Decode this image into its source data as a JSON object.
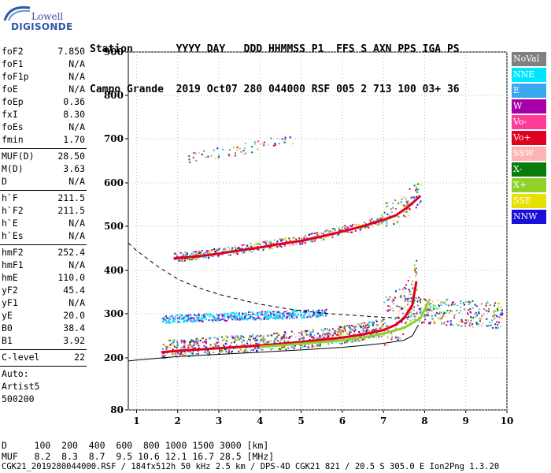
{
  "logo": {
    "top": "Lowell",
    "bottom": "DIGISONDE"
  },
  "header": {
    "line1": "Station       YYYY DAY   DDD HHMMSS P1  FFS S AXN PPS IGA PS",
    "line2": "Campo Grande  2019 Oct07 280 044000 RSF 005 2 713 100 03+ 36"
  },
  "params": {
    "group1": [
      {
        "label": "foF2",
        "value": "7.850"
      },
      {
        "label": "foF1",
        "value": "N/A"
      },
      {
        "label": "foF1p",
        "value": "N/A"
      },
      {
        "label": "foE",
        "value": "N/A"
      },
      {
        "label": "foEp",
        "value": "0.36"
      },
      {
        "label": "fxI",
        "value": "8.30"
      },
      {
        "label": "foEs",
        "value": "N/A"
      },
      {
        "label": "fmin",
        "value": "1.70"
      }
    ],
    "group2": [
      {
        "label": "MUF(D)",
        "value": "28.50"
      },
      {
        "label": "M(D)",
        "value": "3.63"
      },
      {
        "label": "D",
        "value": "N/A"
      }
    ],
    "group3": [
      {
        "label": "h`F",
        "value": "211.5"
      },
      {
        "label": "h`F2",
        "value": "211.5"
      },
      {
        "label": "h`E",
        "value": "N/A"
      },
      {
        "label": "h`Es",
        "value": "N/A"
      }
    ],
    "group4": [
      {
        "label": "hmF2",
        "value": "252.4"
      },
      {
        "label": "hmF1",
        "value": "N/A"
      },
      {
        "label": "hmE",
        "value": "110.0"
      },
      {
        "label": "yF2",
        "value": "45.4"
      },
      {
        "label": "yF1",
        "value": "N/A"
      },
      {
        "label": "yE",
        "value": "20.0"
      },
      {
        "label": "B0",
        "value": "38.4"
      },
      {
        "label": "B1",
        "value": "3.92"
      }
    ],
    "group5": [
      {
        "label": "C-level",
        "value": "22"
      }
    ],
    "auto_lines": [
      "Auto:",
      "Artist5",
      "500200"
    ]
  },
  "footer": {
    "line1": "D     100  200  400  600  800 1000 1500 3000 [km]",
    "line2": "MUF   8.2  8.3  8.7  9.5 10.6 12.1 16.7 28.5 [MHz]",
    "line3": "CGK21_2019280044000.RSF / 184fx512h 50 kHz 2.5 km / DPS-4D CGK21 821 / 20.5 S 305.0 E Ion2Png 1.3.20"
  },
  "legend": [
    {
      "label": "NoVal",
      "color": "#808080"
    },
    {
      "label": "NNE",
      "color": "#00e5ff"
    },
    {
      "label": "E",
      "color": "#39a8f2"
    },
    {
      "label": "W",
      "color": "#a800a8"
    },
    {
      "label": "Vo-",
      "color": "#ff3c9a"
    },
    {
      "label": "Vo+",
      "color": "#e0001f"
    },
    {
      "label": "SSW",
      "color": "#ffb4b4"
    },
    {
      "label": "X-",
      "color": "#0a7a0a"
    },
    {
      "label": "X+",
      "color": "#8fd12a"
    },
    {
      "label": "SSE",
      "color": "#e8e000"
    },
    {
      "label": "NNW",
      "color": "#1a10d8"
    }
  ],
  "chart_data": {
    "type": "scatter",
    "xlabel": "",
    "ylabel": "",
    "xlim": [
      0.8,
      10
    ],
    "ylim": [
      80,
      900
    ],
    "x_ticks": [
      1,
      2,
      3,
      4,
      5,
      6,
      7,
      8,
      9,
      10
    ],
    "y_ticks": [
      80,
      200,
      300,
      400,
      500,
      600,
      700,
      800,
      900
    ],
    "grid": "dotted",
    "traces": [
      {
        "name": "F2 O-trace",
        "color": "#e0001f",
        "x": [
          1.6,
          2.0,
          2.5,
          3.0,
          3.5,
          4.0,
          4.5,
          5.0,
          5.5,
          6.0,
          6.5,
          7.0,
          7.3,
          7.5,
          7.7,
          7.8
        ],
        "y": [
          213,
          216,
          219,
          222,
          225,
          228,
          232,
          236,
          241,
          246,
          253,
          263,
          275,
          290,
          320,
          375
        ]
      },
      {
        "name": "F2 O-trace second hop",
        "color": "#e0001f",
        "x": [
          1.9,
          2.5,
          3.0,
          3.5,
          4.0,
          4.5,
          5.0,
          5.5,
          6.0,
          6.5,
          7.0,
          7.3,
          7.6,
          7.9
        ],
        "y": [
          427,
          432,
          438,
          445,
          452,
          460,
          467,
          477,
          488,
          500,
          515,
          525,
          545,
          570
        ]
      },
      {
        "name": "F2 X-trace",
        "color": "#8fd12a",
        "x": [
          4.0,
          5.0,
          6.0,
          6.5,
          7.0,
          7.5,
          7.9,
          8.1
        ],
        "y": [
          225,
          232,
          240,
          246,
          255,
          268,
          290,
          330
        ]
      }
    ],
    "profile_dashed": {
      "x": [
        0.8,
        1.0,
        1.5,
        2.0,
        2.5,
        3.0,
        3.5,
        4.0,
        4.5,
        5.0,
        5.5,
        6.0,
        6.5,
        7.0,
        7.5
      ],
      "y": [
        462,
        445,
        410,
        380,
        360,
        345,
        333,
        322,
        314,
        307,
        302,
        298,
        295,
        292,
        290
      ]
    },
    "profile_solid": {
      "x": [
        0.8,
        1.0,
        2.0,
        3.0,
        4.0,
        5.0,
        6.0,
        6.5,
        7.0,
        7.5,
        7.7,
        7.85
      ],
      "y": [
        193,
        195,
        203,
        208,
        213,
        218,
        224,
        228,
        233,
        240,
        250,
        275
      ]
    }
  }
}
